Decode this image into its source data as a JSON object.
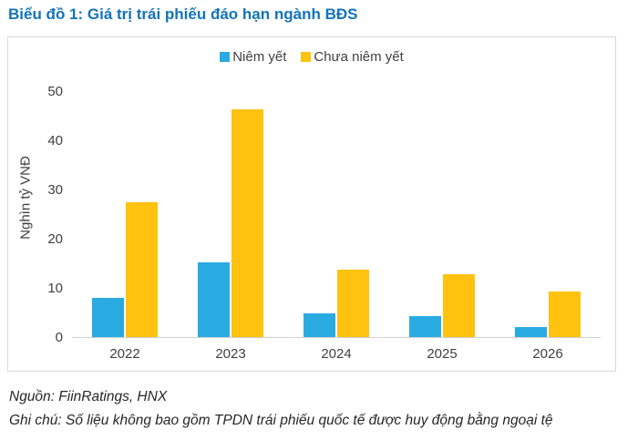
{
  "chart_data": {
    "type": "bar",
    "title": "Biểu đồ 1: Giá trị trái phiếu đáo hạn ngành BĐS",
    "categories": [
      "2022",
      "2023",
      "2024",
      "2025",
      "2026"
    ],
    "series": [
      {
        "name": "Niêm yết",
        "color": "#29ABE2",
        "values": [
          8.0,
          15.2,
          4.9,
          4.2,
          2.1
        ]
      },
      {
        "name": "Chưa niêm yết",
        "color": "#FFC20E",
        "values": [
          27.5,
          46.3,
          13.7,
          12.7,
          9.2
        ]
      }
    ],
    "xlabel": "",
    "ylabel": "Nghìn tỷ VNĐ",
    "ylim": [
      0,
      50
    ],
    "yticks": [
      0,
      10,
      20,
      30,
      40,
      50
    ],
    "grid": false,
    "legend_position": "top-center"
  },
  "footer": {
    "source": "Nguồn: FiinRatings, HNX",
    "note": "Ghi chú: Số liệu không bao gồm TPDN trái phiếu quốc tế được huy động bằng ngoại tệ"
  },
  "colors": {
    "title": "#1273BB",
    "axis_text": "#404040",
    "box_border": "#D9D9D9",
    "baseline": "#D0D0D0"
  }
}
